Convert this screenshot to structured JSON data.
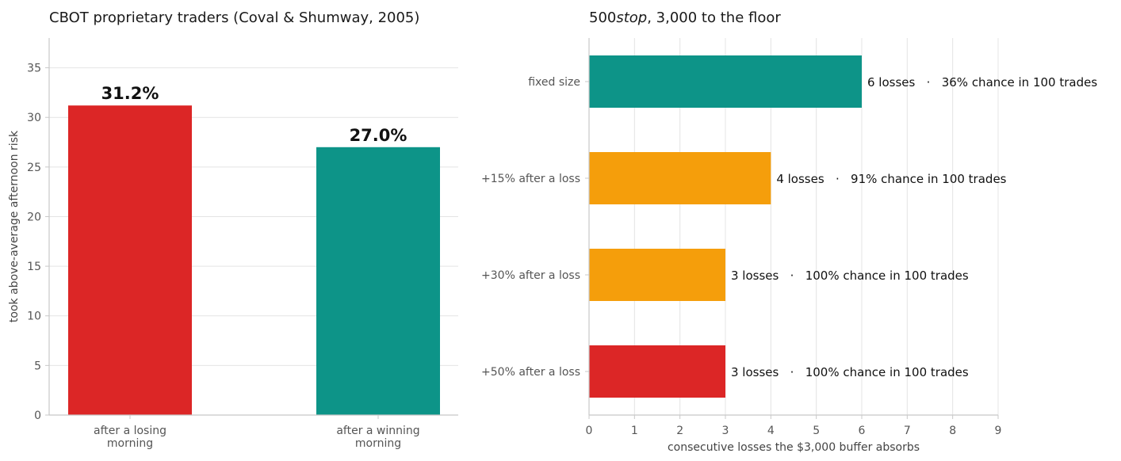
{
  "chart_data": [
    {
      "type": "bar",
      "title": "CBOT proprietary traders (Coval & Shumway, 2005)",
      "ylabel": "took above-average afternoon risk",
      "xlabel": "",
      "ylim": [
        0,
        38
      ],
      "yticks": [
        0,
        5,
        10,
        15,
        20,
        25,
        30,
        35
      ],
      "grid": true,
      "categories": [
        [
          "after a losing",
          "morning"
        ],
        [
          "after a winning",
          "morning"
        ]
      ],
      "values": [
        31.2,
        27.0
      ],
      "value_labels": [
        "31.2%",
        "27.0%"
      ],
      "colors": [
        "#dc2626",
        "#0d9488"
      ]
    },
    {
      "type": "bar",
      "orientation": "horizontal",
      "title": "$500 stop, $3,000 to the floor",
      "title_rendered_main": "500",
      "title_rendered_italic": "stop",
      "title_rendered_rest": ", 3,000 to the floor",
      "xlabel": "consecutive losses the $3,000 buffer absorbs",
      "ylabel": "",
      "xlim": [
        0,
        9
      ],
      "xticks": [
        0,
        1,
        2,
        3,
        4,
        5,
        6,
        7,
        8,
        9
      ],
      "grid": true,
      "categories": [
        "fixed size",
        "+15% after a loss",
        "+30% after a loss",
        "+50% after a loss"
      ],
      "values": [
        6,
        4,
        3,
        3
      ],
      "annotations": [
        "6 losses   ·   36% chance in 100 trades",
        "4 losses   ·   91% chance in 100 trades",
        "3 losses   ·   100% chance in 100 trades",
        "3 losses   ·   100% chance in 100 trades"
      ],
      "colors": [
        "#0d9488",
        "#f59e0b",
        "#f59e0b",
        "#dc2626"
      ]
    }
  ]
}
